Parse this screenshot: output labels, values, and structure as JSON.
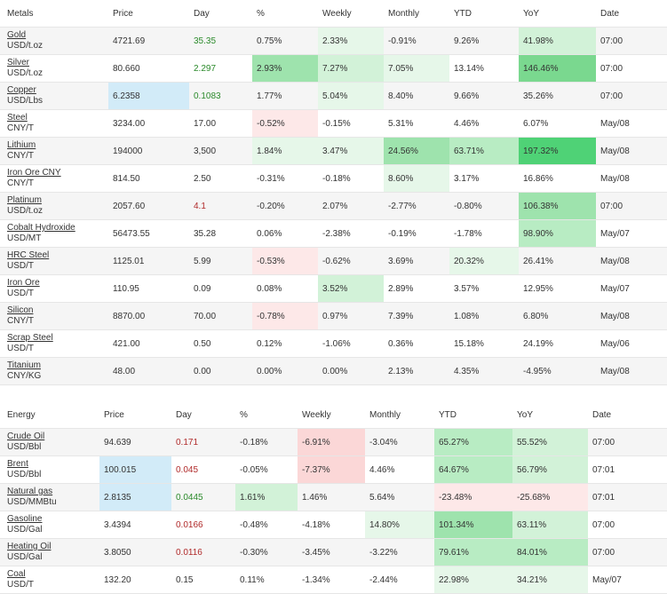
{
  "colors": {
    "positive_text": "#2b8a2b",
    "negative_text": "#b02a2a",
    "updated_highlight": "#d2ebf8",
    "row_stripe": "#f5f5f5"
  },
  "metals": {
    "header": [
      "Metals",
      "Price",
      "Day",
      "%",
      "Weekly",
      "Monthly",
      "YTD",
      "YoY",
      "Date"
    ],
    "rows": [
      {
        "name": "Gold",
        "unit": "USD/t.oz",
        "price": "4721.69",
        "day": "35.35",
        "pct": "0.75%",
        "weekly": "2.33%",
        "monthly": "-0.91%",
        "ytd": "9.26%",
        "yoy": "41.98%",
        "date": "07:00"
      },
      {
        "name": "Silver",
        "unit": "USD/t.oz",
        "price": "80.660",
        "day": "2.297",
        "pct": "2.93%",
        "weekly": "7.27%",
        "monthly": "7.05%",
        "ytd": "13.14%",
        "yoy": "146.46%",
        "date": "07:00"
      },
      {
        "name": "Copper",
        "unit": "USD/Lbs",
        "price": "6.2358",
        "day": "0.1083",
        "pct": "1.77%",
        "weekly": "5.04%",
        "monthly": "8.40%",
        "ytd": "9.66%",
        "yoy": "35.26%",
        "date": "07:00"
      },
      {
        "name": "Steel",
        "unit": "CNY/T",
        "price": "3234.00",
        "day": "17.00",
        "pct": "-0.52%",
        "weekly": "-0.15%",
        "monthly": "5.31%",
        "ytd": "4.46%",
        "yoy": "6.07%",
        "date": "May/08"
      },
      {
        "name": "Lithium",
        "unit": "CNY/T",
        "price": "194000",
        "day": "3,500",
        "pct": "1.84%",
        "weekly": "3.47%",
        "monthly": "24.56%",
        "ytd": "63.71%",
        "yoy": "197.32%",
        "date": "May/08"
      },
      {
        "name": "Iron Ore CNY",
        "unit": "CNY/T",
        "price": "814.50",
        "day": "2.50",
        "pct": "-0.31%",
        "weekly": "-0.18%",
        "monthly": "8.60%",
        "ytd": "3.17%",
        "yoy": "16.86%",
        "date": "May/08"
      },
      {
        "name": "Platinum",
        "unit": "USD/t.oz",
        "price": "2057.60",
        "day": "4.1",
        "pct": "-0.20%",
        "weekly": "2.07%",
        "monthly": "-2.77%",
        "ytd": "-0.80%",
        "yoy": "106.38%",
        "date": "07:00"
      },
      {
        "name": "Cobalt Hydroxide",
        "unit": "USD/MT",
        "price": "56473.55",
        "day": "35.28",
        "pct": "0.06%",
        "weekly": "-2.38%",
        "monthly": "-0.19%",
        "ytd": "-1.78%",
        "yoy": "98.90%",
        "date": "May/07"
      },
      {
        "name": "HRC Steel",
        "unit": "USD/T",
        "price": "1125.01",
        "day": "5.99",
        "pct": "-0.53%",
        "weekly": "-0.62%",
        "monthly": "3.69%",
        "ytd": "20.32%",
        "yoy": "26.41%",
        "date": "May/08"
      },
      {
        "name": "Iron Ore",
        "unit": "USD/T",
        "price": "110.95",
        "day": "0.09",
        "pct": "0.08%",
        "weekly": "3.52%",
        "monthly": "2.89%",
        "ytd": "3.57%",
        "yoy": "12.95%",
        "date": "May/07"
      },
      {
        "name": "Silicon",
        "unit": "CNY/T",
        "price": "8870.00",
        "day": "70.00",
        "pct": "-0.78%",
        "weekly": "0.97%",
        "monthly": "7.39%",
        "ytd": "1.08%",
        "yoy": "6.80%",
        "date": "May/08"
      },
      {
        "name": "Scrap Steel",
        "unit": "USD/T",
        "price": "421.00",
        "day": "0.50",
        "pct": "0.12%",
        "weekly": "-1.06%",
        "monthly": "0.36%",
        "ytd": "15.18%",
        "yoy": "24.19%",
        "date": "May/06"
      },
      {
        "name": "Titanium",
        "unit": "CNY/KG",
        "price": "48.00",
        "day": "0.00",
        "pct": "0.00%",
        "weekly": "0.00%",
        "monthly": "2.13%",
        "ytd": "4.35%",
        "yoy": "-4.95%",
        "date": "May/08"
      }
    ]
  },
  "energy": {
    "header": [
      "Energy",
      "Price",
      "Day",
      "%",
      "Weekly",
      "Monthly",
      "YTD",
      "YoY",
      "Date"
    ],
    "rows": [
      {
        "name": "Crude Oil",
        "unit": "USD/Bbl",
        "price": "94.639",
        "day": "0.171",
        "pct": "-0.18%",
        "weekly": "-6.91%",
        "monthly": "-3.04%",
        "ytd": "65.27%",
        "yoy": "55.52%",
        "date": "07:00"
      },
      {
        "name": "Brent",
        "unit": "USD/Bbl",
        "price": "100.015",
        "day": "0.045",
        "pct": "-0.05%",
        "weekly": "-7.37%",
        "monthly": "4.46%",
        "ytd": "64.67%",
        "yoy": "56.79%",
        "date": "07:01"
      },
      {
        "name": "Natural gas",
        "unit": "USD/MMBtu",
        "price": "2.8135",
        "day": "0.0445",
        "pct": "1.61%",
        "weekly": "1.46%",
        "monthly": "5.64%",
        "ytd": "-23.48%",
        "yoy": "-25.68%",
        "date": "07:01"
      },
      {
        "name": "Gasoline",
        "unit": "USD/Gal",
        "price": "3.4394",
        "day": "0.0166",
        "pct": "-0.48%",
        "weekly": "-4.18%",
        "monthly": "14.80%",
        "ytd": "101.34%",
        "yoy": "63.11%",
        "date": "07:00"
      },
      {
        "name": "Heating Oil",
        "unit": "USD/Gal",
        "price": "3.8050",
        "day": "0.0116",
        "pct": "-0.30%",
        "weekly": "-3.45%",
        "monthly": "-3.22%",
        "ytd": "79.61%",
        "yoy": "84.01%",
        "date": "07:00"
      },
      {
        "name": "Coal",
        "unit": "USD/T",
        "price": "132.20",
        "day": "0.15",
        "pct": "0.11%",
        "weekly": "-1.34%",
        "monthly": "-2.44%",
        "ytd": "22.98%",
        "yoy": "34.21%",
        "date": "May/07"
      }
    ]
  }
}
